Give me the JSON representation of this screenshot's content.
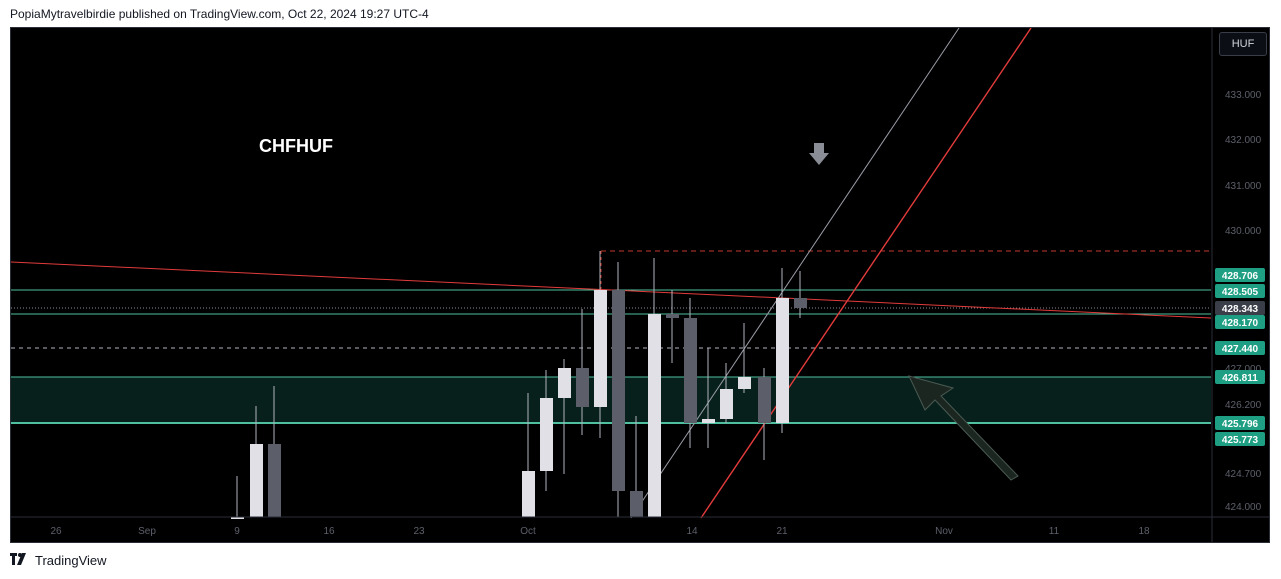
{
  "header": {
    "publish_line": "PopiaMytravelbirdie published on TradingView.com, Oct 22, 2024 19:27 UTC-4"
  },
  "footer": {
    "brand": "TradingView",
    "logo_icon": "tradingview-logo-icon"
  },
  "chart": {
    "symbol": "CHFHUF",
    "currency": "HUF",
    "colors": {
      "background": "#000000",
      "candle_up": "#e0e0e6",
      "candle_down": "#5c5f6a",
      "trendline": "#e23b3b",
      "channel_line": "#9a9ca6",
      "level_line": "#4fbfa0",
      "zone_fill": "#07201c",
      "label_green": "#1e9e82",
      "label_dark": "#3a3e49",
      "dash_red": "#c0392b"
    },
    "y_ticks": [
      "433.000",
      "432.000",
      "431.000",
      "430.000",
      "427.000",
      "426.200",
      "424.700",
      "424.000"
    ],
    "x_ticks": [
      "26",
      "Sep",
      "9",
      "16",
      "23",
      "Oct",
      "14",
      "21",
      "Nov",
      "11",
      "18"
    ],
    "price_labels": [
      {
        "text": "428.706",
        "style": "green"
      },
      {
        "text": "428.505",
        "style": "green"
      },
      {
        "text": "428.343",
        "style": "dark"
      },
      {
        "text": "428.170",
        "style": "green"
      },
      {
        "text": "427.440",
        "style": "green"
      },
      {
        "text": "426.811",
        "style": "green"
      },
      {
        "text": "425.796",
        "style": "green"
      },
      {
        "text": "425.773",
        "style": "green"
      }
    ]
  }
}
